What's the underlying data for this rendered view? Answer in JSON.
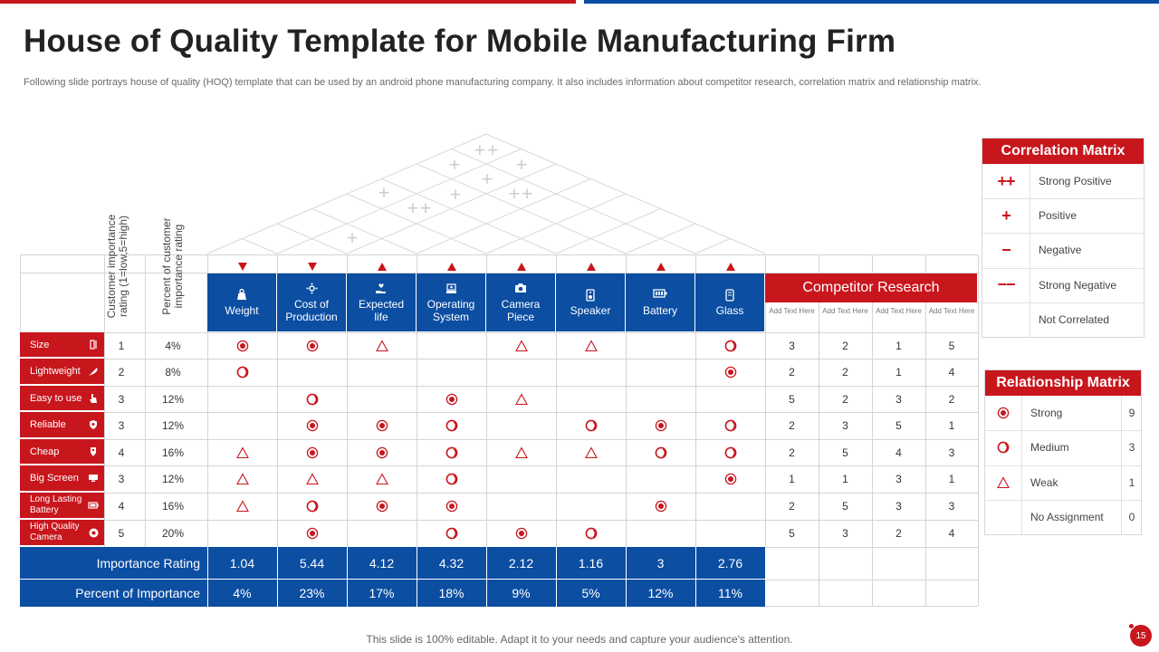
{
  "title": "House of Quality Template for Mobile Manufacturing Firm",
  "subtitle": "Following slide portrays house of quality (HOQ) template that can be used by an android phone manufacturing company. It also includes information about competitor research, correlation matrix and relationship matrix.",
  "column_labels": {
    "importance_rating": "Customer importance rating (1=low,5=high)",
    "percent_rating": "Percent of customer importance rating"
  },
  "roof_symbols": [
    "++",
    "+",
    "+",
    "+",
    "+",
    "+",
    "++",
    "++",
    "+"
  ],
  "requirements": [
    {
      "label": "Weight",
      "icon": "weight-icon",
      "direction": "down"
    },
    {
      "label": "Cost of Production",
      "icon": "gears-icon",
      "direction": "down"
    },
    {
      "label": "Expected life",
      "icon": "hand-heart-icon",
      "direction": "up"
    },
    {
      "label": "Operating System",
      "icon": "system-icon",
      "direction": "up"
    },
    {
      "label": "Camera Piece",
      "icon": "camera-icon",
      "direction": "up"
    },
    {
      "label": "Speaker",
      "icon": "speaker-icon",
      "direction": "up"
    },
    {
      "label": "Battery",
      "icon": "battery-icon",
      "direction": "up"
    },
    {
      "label": "Glass",
      "icon": "glass-icon",
      "direction": "up"
    }
  ],
  "customer_rows": [
    {
      "label": "Size",
      "icon": "resize-icon",
      "rating": "1",
      "percent": "4%",
      "relations": [
        "strong",
        "strong",
        "weak",
        "",
        "weak",
        "weak",
        "",
        "medium"
      ],
      "competitor": [
        "3",
        "2",
        "1",
        "5"
      ]
    },
    {
      "label": "Lightweight",
      "icon": "feather-icon",
      "rating": "2",
      "percent": "8%",
      "relations": [
        "medium",
        "",
        "",
        "",
        "",
        "",
        "",
        "strong"
      ],
      "competitor": [
        "2",
        "2",
        "1",
        "4"
      ]
    },
    {
      "label": "Easy to use",
      "icon": "hand-pointer-icon",
      "rating": "3",
      "percent": "12%",
      "relations": [
        "",
        "medium",
        "",
        "strong",
        "weak",
        "",
        "",
        ""
      ],
      "competitor": [
        "5",
        "2",
        "3",
        "2"
      ]
    },
    {
      "label": "Reliable",
      "icon": "shield-icon",
      "rating": "3",
      "percent": "12%",
      "relations": [
        "",
        "strong",
        "strong",
        "medium",
        "",
        "medium",
        "strong",
        "medium"
      ],
      "competitor": [
        "2",
        "3",
        "5",
        "1"
      ]
    },
    {
      "label": "Cheap",
      "icon": "price-tag-icon",
      "rating": "4",
      "percent": "16%",
      "relations": [
        "weak",
        "strong",
        "strong",
        "medium",
        "weak",
        "weak",
        "medium",
        "medium"
      ],
      "competitor": [
        "2",
        "5",
        "4",
        "3"
      ]
    },
    {
      "label": "Big Screen",
      "icon": "screen-icon",
      "rating": "3",
      "percent": "12%",
      "relations": [
        "weak",
        "weak",
        "weak",
        "medium",
        "",
        "",
        "",
        "strong"
      ],
      "competitor": [
        "1",
        "1",
        "3",
        "1"
      ]
    },
    {
      "label": "Long Lasting Battery",
      "icon": "battery-icon",
      "rating": "4",
      "percent": "16%",
      "relations": [
        "weak",
        "medium",
        "strong",
        "strong",
        "",
        "",
        "strong",
        ""
      ],
      "competitor": [
        "2",
        "5",
        "3",
        "3"
      ]
    },
    {
      "label": "High Quality Camera",
      "icon": "camera-icon",
      "rating": "5",
      "percent": "20%",
      "relations": [
        "",
        "strong",
        "",
        "medium",
        "strong",
        "medium",
        "",
        ""
      ],
      "competitor": [
        "5",
        "3",
        "2",
        "4"
      ]
    }
  ],
  "competitor": {
    "title": "Competitor Research",
    "columns": [
      "Add Text Here",
      "Add Text Here",
      "Add Text Here",
      "Add Text Here"
    ]
  },
  "importance": {
    "rating_label": "Importance Rating",
    "ratings": [
      "1.04",
      "5.44",
      "4.12",
      "4.32",
      "2.12",
      "1.16",
      "3",
      "2.76"
    ],
    "percent_label": "Percent of Importance",
    "percents": [
      "4%",
      "23%",
      "17%",
      "18%",
      "9%",
      "5%",
      "12%",
      "11%"
    ]
  },
  "correlation_matrix": {
    "title": "Correlation Matrix",
    "items": [
      {
        "symbol": "++",
        "label": "Strong Positive"
      },
      {
        "symbol": "+",
        "label": "Positive"
      },
      {
        "symbol": "−",
        "label": "Negative"
      },
      {
        "symbol": "−−",
        "label": "Strong Negative"
      },
      {
        "symbol": "",
        "label": "Not Correlated"
      }
    ]
  },
  "relationship_matrix": {
    "title": "Relationship Matrix",
    "items": [
      {
        "symbol": "strong",
        "label": "Strong",
        "value": "9"
      },
      {
        "symbol": "medium",
        "label": "Medium",
        "value": "3"
      },
      {
        "symbol": "weak",
        "label": "Weak",
        "value": "1"
      },
      {
        "symbol": "",
        "label": "No Assignment",
        "value": "0"
      }
    ]
  },
  "colors": {
    "red": "#c8161d",
    "blue": "#0b4ea2"
  },
  "footer": "This slide is 100% editable. Adapt it to your needs and capture your audience's attention.",
  "page_number": "15"
}
